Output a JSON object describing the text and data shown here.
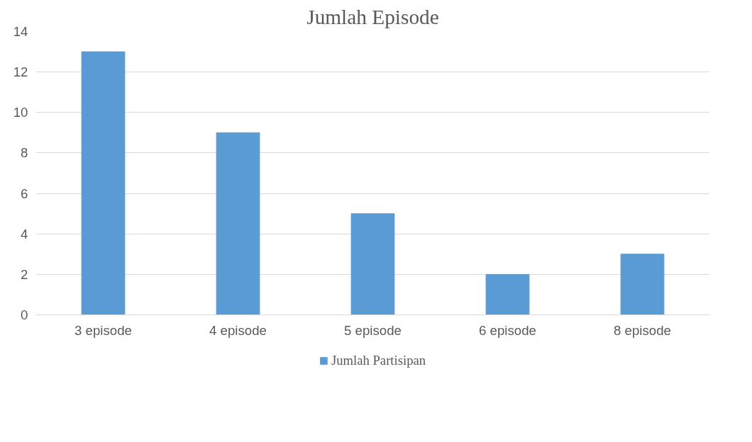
{
  "chart_data": {
    "type": "bar",
    "title": "Jumlah Episode",
    "categories": [
      "3 episode",
      "4 episode",
      "5 episode",
      "6 episode",
      "8 episode"
    ],
    "series": [
      {
        "name": "Jumlah Partisipan",
        "color": "#5b9bd5",
        "values": [
          13,
          9,
          5,
          2,
          3
        ]
      }
    ],
    "ylim": [
      0,
      14
    ],
    "yticks": [
      0,
      2,
      4,
      6,
      8,
      10,
      12,
      14
    ],
    "grid": "y",
    "legend": "bottom"
  }
}
